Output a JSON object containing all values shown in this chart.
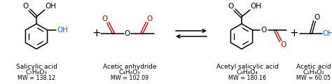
{
  "bg_color": "#ffffff",
  "black": "#000000",
  "red": "#cc0000",
  "blue": "#1a6aff",
  "compounds": [
    {
      "name": "Salicylic acid",
      "formula": "C₇H₆O₃",
      "mw": "MW = 138.12"
    },
    {
      "name": "Acetic anhydride",
      "formula": "C₄H₆O₃",
      "mw": "MW = 102.09"
    },
    {
      "name": "Acetyl salicylic acid",
      "formula": "C₉H₈O₄",
      "mw": "MW = 180.16"
    },
    {
      "name": "Acetic acid",
      "formula": "C₂H₄O₂",
      "mw": "MW = 60.05"
    }
  ],
  "name_fs": 6.5,
  "formula_fs": 6.5,
  "mw_fs": 5.8
}
